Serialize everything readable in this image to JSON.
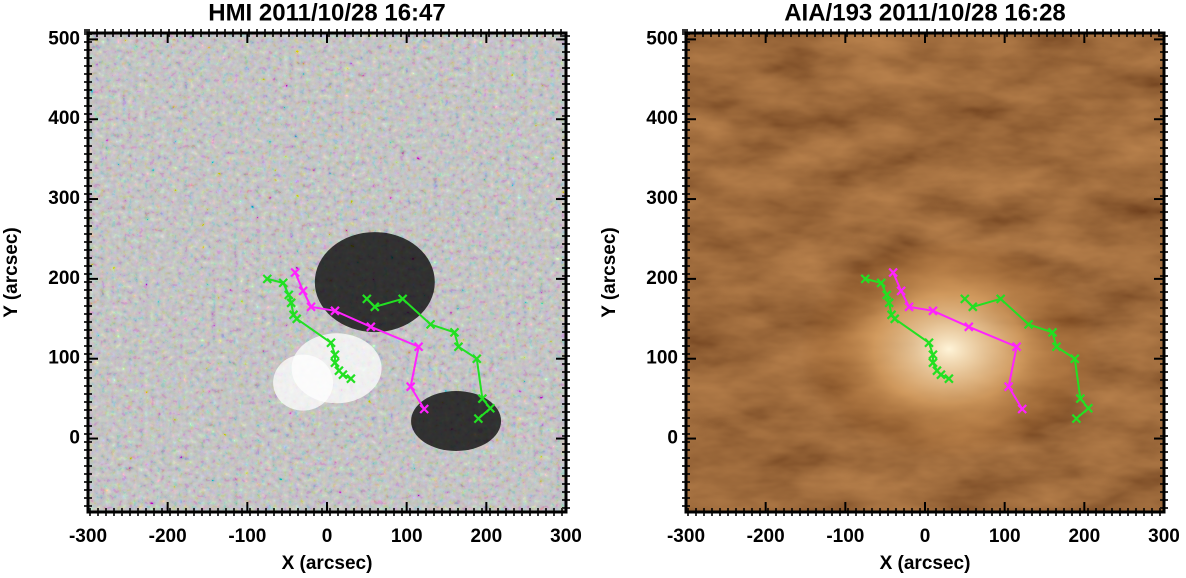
{
  "chart_data": [
    {
      "type": "line",
      "title": "HMI 2011/10/28 16:47",
      "xlabel": "X (arcsec)",
      "ylabel": "Y (arcsec)",
      "background": "magnetogram",
      "xlim": [
        -300,
        300
      ],
      "ylim": [
        -92,
        508
      ],
      "xticks": [
        -300,
        -200,
        -100,
        0,
        100,
        200,
        300
      ],
      "yticks": [
        0,
        100,
        200,
        300,
        400,
        500
      ],
      "series": [
        {
          "color": "#22e022",
          "x": [
            -75,
            -55,
            -48,
            -45,
            -42,
            -38,
            5,
            10,
            10,
            15,
            20,
            30
          ],
          "values": [
            200,
            195,
            180,
            170,
            155,
            150,
            120,
            105,
            95,
            85,
            80,
            75
          ]
        },
        {
          "color": "#ff22ff",
          "x": [
            -40,
            -30,
            -20,
            10,
            55,
            115,
            105,
            122
          ],
          "values": [
            208,
            185,
            165,
            160,
            140,
            115,
            65,
            37
          ]
        },
        {
          "color": "#22e022",
          "x": [
            50,
            60,
            95,
            130,
            160,
            165,
            188,
            195,
            205,
            190
          ],
          "values": [
            175,
            165,
            175,
            143,
            133,
            115,
            100,
            50,
            38,
            25
          ]
        }
      ]
    },
    {
      "type": "line",
      "title": "AIA/193 2011/10/28 16:28",
      "xlabel": "X (arcsec)",
      "ylabel": "Y (arcsec)",
      "background": "euv",
      "xlim": [
        -300,
        300
      ],
      "ylim": [
        -92,
        508
      ],
      "xticks": [
        -300,
        -200,
        -100,
        0,
        100,
        200,
        300
      ],
      "yticks": [
        0,
        100,
        200,
        300,
        400,
        500
      ],
      "series": [
        {
          "color": "#22e022",
          "x": [
            -75,
            -55,
            -48,
            -45,
            -42,
            -38,
            5,
            10,
            10,
            15,
            20,
            30
          ],
          "values": [
            200,
            195,
            180,
            170,
            155,
            150,
            120,
            105,
            95,
            85,
            80,
            75
          ]
        },
        {
          "color": "#ff22ff",
          "x": [
            -40,
            -30,
            -20,
            10,
            55,
            115,
            105,
            122
          ],
          "values": [
            208,
            185,
            165,
            160,
            140,
            115,
            65,
            37
          ]
        },
        {
          "color": "#22e022",
          "x": [
            50,
            60,
            95,
            130,
            160,
            165,
            188,
            195,
            205,
            190
          ],
          "values": [
            175,
            165,
            175,
            143,
            133,
            115,
            100,
            50,
            38,
            25
          ]
        }
      ]
    }
  ]
}
